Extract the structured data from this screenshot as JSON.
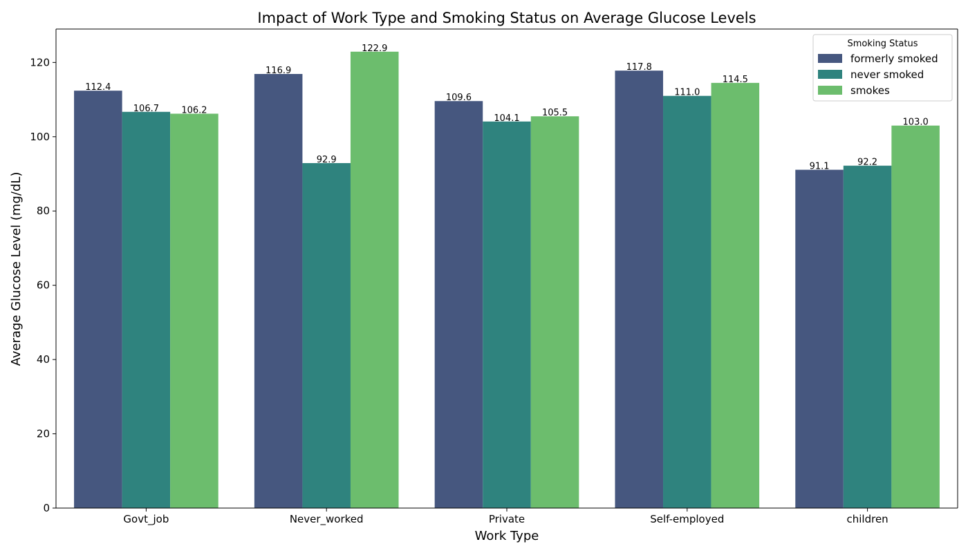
{
  "chart_data": {
    "type": "bar",
    "title": "Impact of Work Type and Smoking Status on Average Glucose Levels",
    "xlabel": "Work Type",
    "ylabel": "Average Glucose Level (mg/dL)",
    "categories": [
      "Govt_job",
      "Never_worked",
      "Private",
      "Self-employed",
      "children"
    ],
    "ylim": [
      0,
      129
    ],
    "yticks": [
      0,
      20,
      40,
      60,
      80,
      100,
      120
    ],
    "grid": false,
    "legend": {
      "title": "Smoking Status",
      "position": "top-right"
    },
    "series": [
      {
        "name": "formerly smoked",
        "color": "#46577f",
        "values": [
          112.4,
          116.9,
          109.6,
          117.8,
          91.1
        ]
      },
      {
        "name": "never smoked",
        "color": "#2f837e",
        "values": [
          106.7,
          92.9,
          104.1,
          111.0,
          92.2
        ]
      },
      {
        "name": "smokes",
        "color": "#6cbd6d",
        "values": [
          106.2,
          122.9,
          105.5,
          114.5,
          103.0
        ]
      }
    ]
  }
}
